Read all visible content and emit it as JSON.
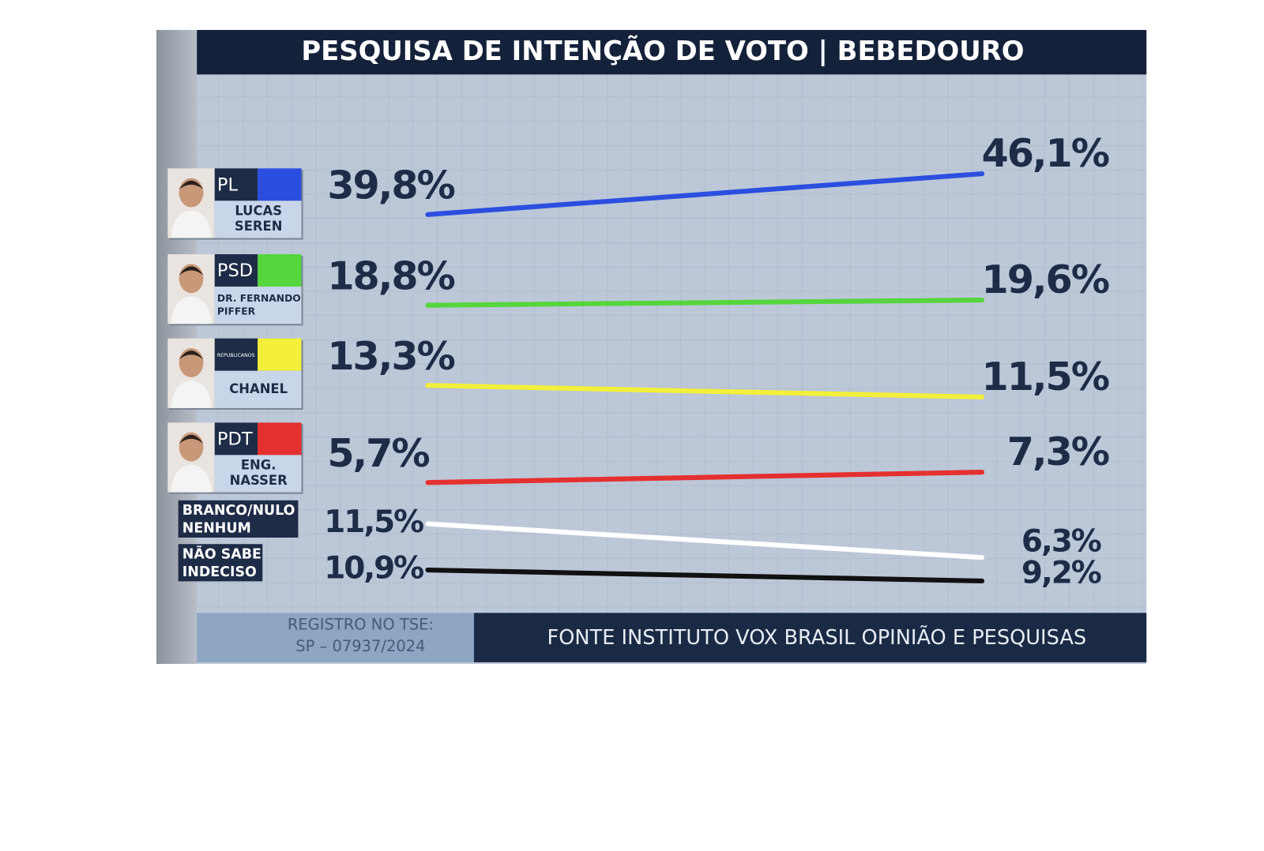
{
  "chart_data": {
    "type": "slope",
    "title": "PESQUISA DE INTENÇÃO DE VOTO | BEBEDOURO",
    "series": [
      {
        "name": [
          "LUCAS",
          "SEREN"
        ],
        "party": "PL",
        "color": "#2a4fe0",
        "values": [
          39.8,
          46.1
        ],
        "value_labels": [
          "39,8%",
          "46,1%"
        ]
      },
      {
        "name": [
          "DR. FERNANDO",
          "PIFFER"
        ],
        "party": "PSD",
        "color": "#55d63c",
        "values": [
          18.8,
          19.6
        ],
        "value_labels": [
          "18,8%",
          "19,6%"
        ]
      },
      {
        "name": [
          "CHANEL"
        ],
        "party": "REPUBLICANOS",
        "color": "#f3ef3a",
        "values": [
          13.3,
          11.5
        ],
        "value_labels": [
          "13,3%",
          "11,5%"
        ]
      },
      {
        "name": [
          "ENG.",
          "NASSER"
        ],
        "party": "PDT",
        "color": "#e53030",
        "values": [
          5.7,
          7.3
        ],
        "value_labels": [
          "5,7%",
          "7,3%"
        ]
      },
      {
        "name": [
          "BRANCO/NULO",
          "NENHUM"
        ],
        "color": "#ffffff",
        "values": [
          11.5,
          6.3
        ],
        "value_labels": [
          "11,5%",
          "6,3%"
        ]
      },
      {
        "name": [
          "NÃO SABE",
          "INDECISO"
        ],
        "color": "#111111",
        "values": [
          10.9,
          9.2
        ],
        "value_labels": [
          "10,9%",
          "9,2%"
        ]
      }
    ],
    "registry": [
      "REGISTRO NO TSE:",
      "SP – 07937/2024"
    ],
    "source": "FONTE INSTITUTO VOX BRASIL OPINIÃO E PESQUISAS"
  }
}
